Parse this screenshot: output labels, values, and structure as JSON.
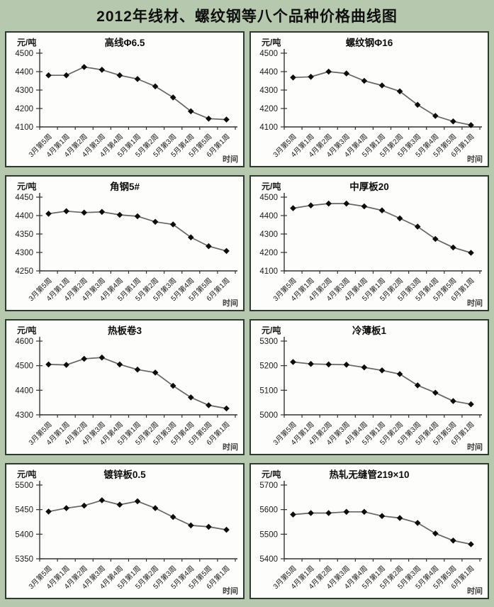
{
  "page_title": "2012年线材、螺纹钢等八个品种价格曲线图",
  "colors": {
    "background": "#b6c8ae",
    "panel_bg": "#fdfdfb",
    "panel_border": "#2e3a2e",
    "axis": "#333333",
    "line": "#666666",
    "marker": "#0d0d0d",
    "text": "#1a1a1a"
  },
  "chart_data": [
    {
      "type": "line",
      "title": "高线Φ6.5",
      "ylabel": "元/吨",
      "xlabel": "时间",
      "categories": [
        "3月第5周",
        "4月第1周",
        "4月第2周",
        "4月第3周",
        "4月第4周",
        "5月第1周",
        "5月第2周",
        "5月第3周",
        "5月第4周",
        "5月第5周",
        "6月第1周"
      ],
      "values": [
        4380,
        4380,
        4425,
        4410,
        4380,
        4360,
        4320,
        4260,
        4185,
        4145,
        4140
      ],
      "ylim": [
        4100,
        4500
      ],
      "ytick_step": 100,
      "marker": "diamond",
      "grid": false,
      "legend": false
    },
    {
      "type": "line",
      "title": "螺纹钢Φ16",
      "ylabel": "元/吨",
      "xlabel": "时间",
      "categories": [
        "3月第5周",
        "4月第1周",
        "4月第2周",
        "4月第3周",
        "4月第4周",
        "5月第1周",
        "5月第2周",
        "5月第3周",
        "5月第4周",
        "5月第5周",
        "6月第1周"
      ],
      "values": [
        4368,
        4372,
        4400,
        4390,
        4350,
        4325,
        4293,
        4220,
        4160,
        4130,
        4110
      ],
      "ylim": [
        4100,
        4500
      ],
      "ytick_step": 100,
      "marker": "diamond",
      "grid": false,
      "legend": false
    },
    {
      "type": "line",
      "title": "角钢5#",
      "ylabel": "元/吨",
      "xlabel": "时间",
      "categories": [
        "3月第5周",
        "4月第1周",
        "4月第2周",
        "4月第3周",
        "4月第4周",
        "5月第1周",
        "5月第2周",
        "5月第3周",
        "5月第4周",
        "5月第5周",
        "6月第1周"
      ],
      "values": [
        4405,
        4412,
        4408,
        4410,
        4402,
        4398,
        4383,
        4376,
        4341,
        4317,
        4304
      ],
      "ylim": [
        4250,
        4450
      ],
      "ytick_step": 50,
      "marker": "diamond",
      "grid": false,
      "legend": false
    },
    {
      "type": "line",
      "title": "中厚板20",
      "ylabel": "元/吨",
      "xlabel": "时间",
      "categories": [
        "3月第5周",
        "4月第1周",
        "4月第2周",
        "4月第3周",
        "4月第4周",
        "5月第1周",
        "5月第2周",
        "5月第3周",
        "5月第4周",
        "5月第5周",
        "6月第1周"
      ],
      "values": [
        4440,
        4455,
        4465,
        4465,
        4450,
        4428,
        4385,
        4340,
        4273,
        4227,
        4198
      ],
      "ylim": [
        4100,
        4500
      ],
      "ytick_step": 100,
      "marker": "diamond",
      "grid": false,
      "legend": false
    },
    {
      "type": "line",
      "title": "热板卷3",
      "ylabel": "元/吨",
      "xlabel": "时间",
      "categories": [
        "3月第5周",
        "4月第1周",
        "4月第2周",
        "4月第3周",
        "4月第4周",
        "5月第1周",
        "5月第2周",
        "5月第3周",
        "5月第4周",
        "5月第5周",
        "6月第1周"
      ],
      "values": [
        4505,
        4503,
        4528,
        4533,
        4505,
        4484,
        4472,
        4418,
        4371,
        4339,
        4326
      ],
      "ylim": [
        4300,
        4600
      ],
      "ytick_step": 100,
      "marker": "diamond",
      "grid": false,
      "legend": false
    },
    {
      "type": "line",
      "title": "冷薄板1",
      "ylabel": "元/吨",
      "xlabel": "时间",
      "categories": [
        "3月第5周",
        "4月第1周",
        "4月第2周",
        "4月第3周",
        "4月第4周",
        "5月第1周",
        "5月第2周",
        "5月第3周",
        "5月第4周",
        "5月第5周",
        "6月第1周"
      ],
      "values": [
        5215,
        5207,
        5205,
        5204,
        5193,
        5181,
        5166,
        5120,
        5090,
        5056,
        5043
      ],
      "ylim": [
        5000,
        5300
      ],
      "ytick_step": 100,
      "marker": "diamond",
      "grid": false,
      "legend": false
    },
    {
      "type": "line",
      "title": "镀锌板0.5",
      "ylabel": "元/吨",
      "xlabel": "时间",
      "categories": [
        "3月第5周",
        "4月第1周",
        "4月第2周",
        "4月第3周",
        "4月第4周",
        "5月第1周",
        "5月第2周",
        "5月第3周",
        "5月第4周",
        "5月第5周",
        "6月第1周"
      ],
      "values": [
        5446,
        5453,
        5458,
        5469,
        5460,
        5467,
        5453,
        5435,
        5418,
        5415,
        5409
      ],
      "ylim": [
        5350,
        5500
      ],
      "ytick_step": 50,
      "marker": "diamond",
      "grid": false,
      "legend": false
    },
    {
      "type": "line",
      "title": "热轧无缝管219×10",
      "ylabel": "元/吨",
      "xlabel": "时间",
      "categories": [
        "3月第5周",
        "4月第1周",
        "4月第2周",
        "4月第3周",
        "4月第4周",
        "5月第1周",
        "5月第2周",
        "5月第3周",
        "5月第4周",
        "5月第5周",
        "6月第1周"
      ],
      "values": [
        5580,
        5586,
        5586,
        5591,
        5591,
        5574,
        5566,
        5546,
        5503,
        5474,
        5459
      ],
      "ylim": [
        5400,
        5700
      ],
      "ytick_step": 100,
      "marker": "diamond",
      "grid": false,
      "legend": false
    }
  ]
}
